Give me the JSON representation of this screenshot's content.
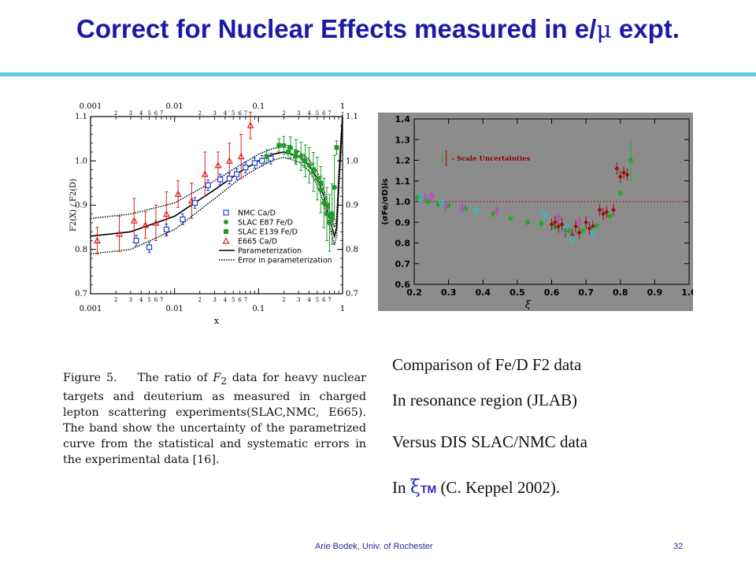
{
  "slide": {
    "title_pre": "Correct for Nuclear Effects measured in e/",
    "title_mu": "μ",
    "title_post": " expt.",
    "footer_author": "Arie Bodek,  Univ. of Rochester",
    "page_number": "32"
  },
  "caption": {
    "label": "Figure 5.",
    "p1": "The ratio of ",
    "f2": "F",
    "f2sub": "2",
    "p2": " data for heavy nuclear targets and deuterium as measured in charged lepton scattering experiments(SLAC,NMC, E665). The band show the uncertainty of the parametrized curve from the statistical and systematic errors in the experimental data [16]."
  },
  "side_text": {
    "line1": "Comparison of Fe/D   F2 data",
    "line2": "In resonance region (JLAB)",
    "line3": "Versus DIS SLAC/NMC data",
    "line4_pre": "In ",
    "line4_xi": "ξ",
    "line4_tm": "TM",
    "line4_post": " (C. Keppel 2002)."
  },
  "chart_data": [
    {
      "type": "scatter",
      "xscale": "log",
      "xlim": [
        0.001,
        1
      ],
      "ylim": [
        0.7,
        1.1
      ],
      "xlabel": "x",
      "ylabel": "F2(X) / F2(D)",
      "xticks": [
        "0.001",
        "0.01",
        "0.1",
        "1"
      ],
      "yticks": [
        "0.7",
        "0.8",
        "0.9",
        "1.0",
        "1.1"
      ],
      "grid": false,
      "legend_position": "bottom-right",
      "colors": {
        "nmc": "#1f3fd0",
        "e87": "#1f9b2c",
        "e139": "#1f9b2c",
        "e665": "#e02020",
        "curve": "#000000"
      },
      "series": [
        {
          "name": "NMC Ca/D",
          "marker": "open-square",
          "x": [
            0.0035,
            0.005,
            0.008,
            0.0125,
            0.0175,
            0.025,
            0.035,
            0.045,
            0.055,
            0.07,
            0.09,
            0.11,
            0.14
          ],
          "y": [
            0.82,
            0.805,
            0.845,
            0.868,
            0.905,
            0.945,
            0.958,
            0.96,
            0.97,
            0.985,
            0.995,
            1.0,
            1.005
          ]
        },
        {
          "name": "SLAC E87 Fe/D",
          "marker": "filled-circle",
          "x": [
            0.2,
            0.24,
            0.28,
            0.32,
            0.36,
            0.4,
            0.45,
            0.5,
            0.55,
            0.6,
            0.65,
            0.7,
            0.75,
            0.8
          ],
          "y": [
            1.035,
            1.03,
            1.02,
            1.01,
            1.0,
            0.99,
            0.975,
            0.96,
            0.935,
            0.905,
            0.88,
            0.86,
            0.88,
            0.94
          ]
        },
        {
          "name": "SLAC E139 Fe/D",
          "marker": "filled-square",
          "x": [
            0.125,
            0.175,
            0.225,
            0.275,
            0.35,
            0.45,
            0.55,
            0.65,
            0.75,
            0.85
          ],
          "y": [
            1.01,
            1.035,
            1.02,
            1.01,
            1.0,
            0.98,
            0.95,
            0.9,
            0.87,
            1.03
          ]
        },
        {
          "name": "E665  Ca/D",
          "marker": "open-triangle",
          "x": [
            0.0012,
            0.0022,
            0.0033,
            0.0045,
            0.006,
            0.008,
            0.011,
            0.016,
            0.023,
            0.033,
            0.045,
            0.062,
            0.08
          ],
          "y": [
            0.82,
            0.835,
            0.865,
            0.855,
            0.86,
            0.88,
            0.925,
            0.91,
            0.97,
            0.99,
            1.0,
            1.01,
            1.08
          ]
        },
        {
          "name": "Parameterization",
          "style": "solid-line",
          "x": [
            0.001,
            0.003,
            0.01,
            0.03,
            0.06,
            0.1,
            0.15,
            0.2,
            0.3,
            0.4,
            0.5,
            0.6,
            0.7,
            0.8,
            0.85,
            0.9,
            1.0
          ],
          "y": [
            0.83,
            0.84,
            0.875,
            0.935,
            0.975,
            1.0,
            1.015,
            1.02,
            1.01,
            0.99,
            0.96,
            0.92,
            0.87,
            0.83,
            0.85,
            0.95,
            1.1
          ]
        },
        {
          "name": "Error in parameterization",
          "style": "dotted-band",
          "x": [
            0.001,
            0.003,
            0.01,
            0.03,
            0.06,
            0.1,
            0.15,
            0.2,
            0.3,
            0.4,
            0.5,
            0.6,
            0.7,
            0.8,
            0.85,
            0.9,
            1.0
          ],
          "y_upper": [
            0.87,
            0.88,
            0.905,
            0.955,
            0.99,
            1.015,
            1.028,
            1.032,
            1.022,
            1.003,
            0.975,
            0.935,
            0.888,
            0.85,
            0.87,
            0.97,
            1.11
          ],
          "y_lower": [
            0.79,
            0.8,
            0.845,
            0.915,
            0.96,
            0.985,
            1.002,
            1.008,
            0.998,
            0.977,
            0.945,
            0.905,
            0.852,
            0.81,
            0.83,
            0.93,
            1.09
          ]
        }
      ]
    },
    {
      "type": "scatter",
      "xlim": [
        0.2,
        1.0
      ],
      "ylim": [
        0.6,
        1.4
      ],
      "xlabel": "ξ",
      "ylabel": "(σFe/σD)is",
      "xticks": [
        "0.2",
        "0.3",
        "0.4",
        "0.5",
        "0.6",
        "0.7",
        "0.8",
        "0.9",
        "1.0"
      ],
      "yticks": [
        "0.6",
        "0.7",
        "0.8",
        "0.9",
        "1.0",
        "1.1",
        "1.2",
        "1.3",
        "1.4"
      ],
      "reference_line_y": 1.0,
      "annotation": "- Scale Uncertainties",
      "colors": {
        "background": "#8c8c8c",
        "green": "#22aa22",
        "red": "#9b1010",
        "magenta": "#c040c0",
        "cyan": "#30c0c0"
      },
      "series": [
        {
          "marker": "green-circle",
          "x": [
            0.21,
            0.24,
            0.27,
            0.3,
            0.35,
            0.43,
            0.48,
            0.53,
            0.57,
            0.61,
            0.65,
            0.69,
            0.73,
            0.77,
            0.8,
            0.83
          ],
          "y": [
            1.02,
            1.0,
            0.985,
            0.98,
            0.965,
            0.94,
            0.92,
            0.9,
            0.895,
            0.875,
            0.86,
            0.86,
            0.885,
            0.93,
            1.04,
            1.2
          ]
        },
        {
          "marker": "red-diamond",
          "x": [
            0.6,
            0.61,
            0.62,
            0.63,
            0.64,
            0.66,
            0.67,
            0.68,
            0.7,
            0.71,
            0.72,
            0.74,
            0.75,
            0.76,
            0.78,
            0.79,
            0.8,
            0.81,
            0.82
          ],
          "y": [
            0.89,
            0.9,
            0.88,
            0.89,
            0.86,
            0.84,
            0.88,
            0.85,
            0.9,
            0.87,
            0.88,
            0.96,
            0.94,
            0.95,
            0.96,
            1.16,
            1.12,
            1.14,
            1.13
          ]
        },
        {
          "marker": "magenta-circle",
          "x": [
            0.23,
            0.25,
            0.29,
            0.34,
            0.44,
            0.62,
            0.68
          ],
          "y": [
            1.02,
            1.025,
            0.98,
            0.97,
            0.955,
            0.92,
            0.9
          ]
        },
        {
          "marker": "cyan-square",
          "x": [
            0.22,
            0.28,
            0.38,
            0.58,
            0.64,
            0.66,
            0.72
          ],
          "y": [
            1.02,
            0.995,
            0.96,
            0.935,
            0.87,
            0.82,
            0.85
          ]
        }
      ]
    }
  ]
}
